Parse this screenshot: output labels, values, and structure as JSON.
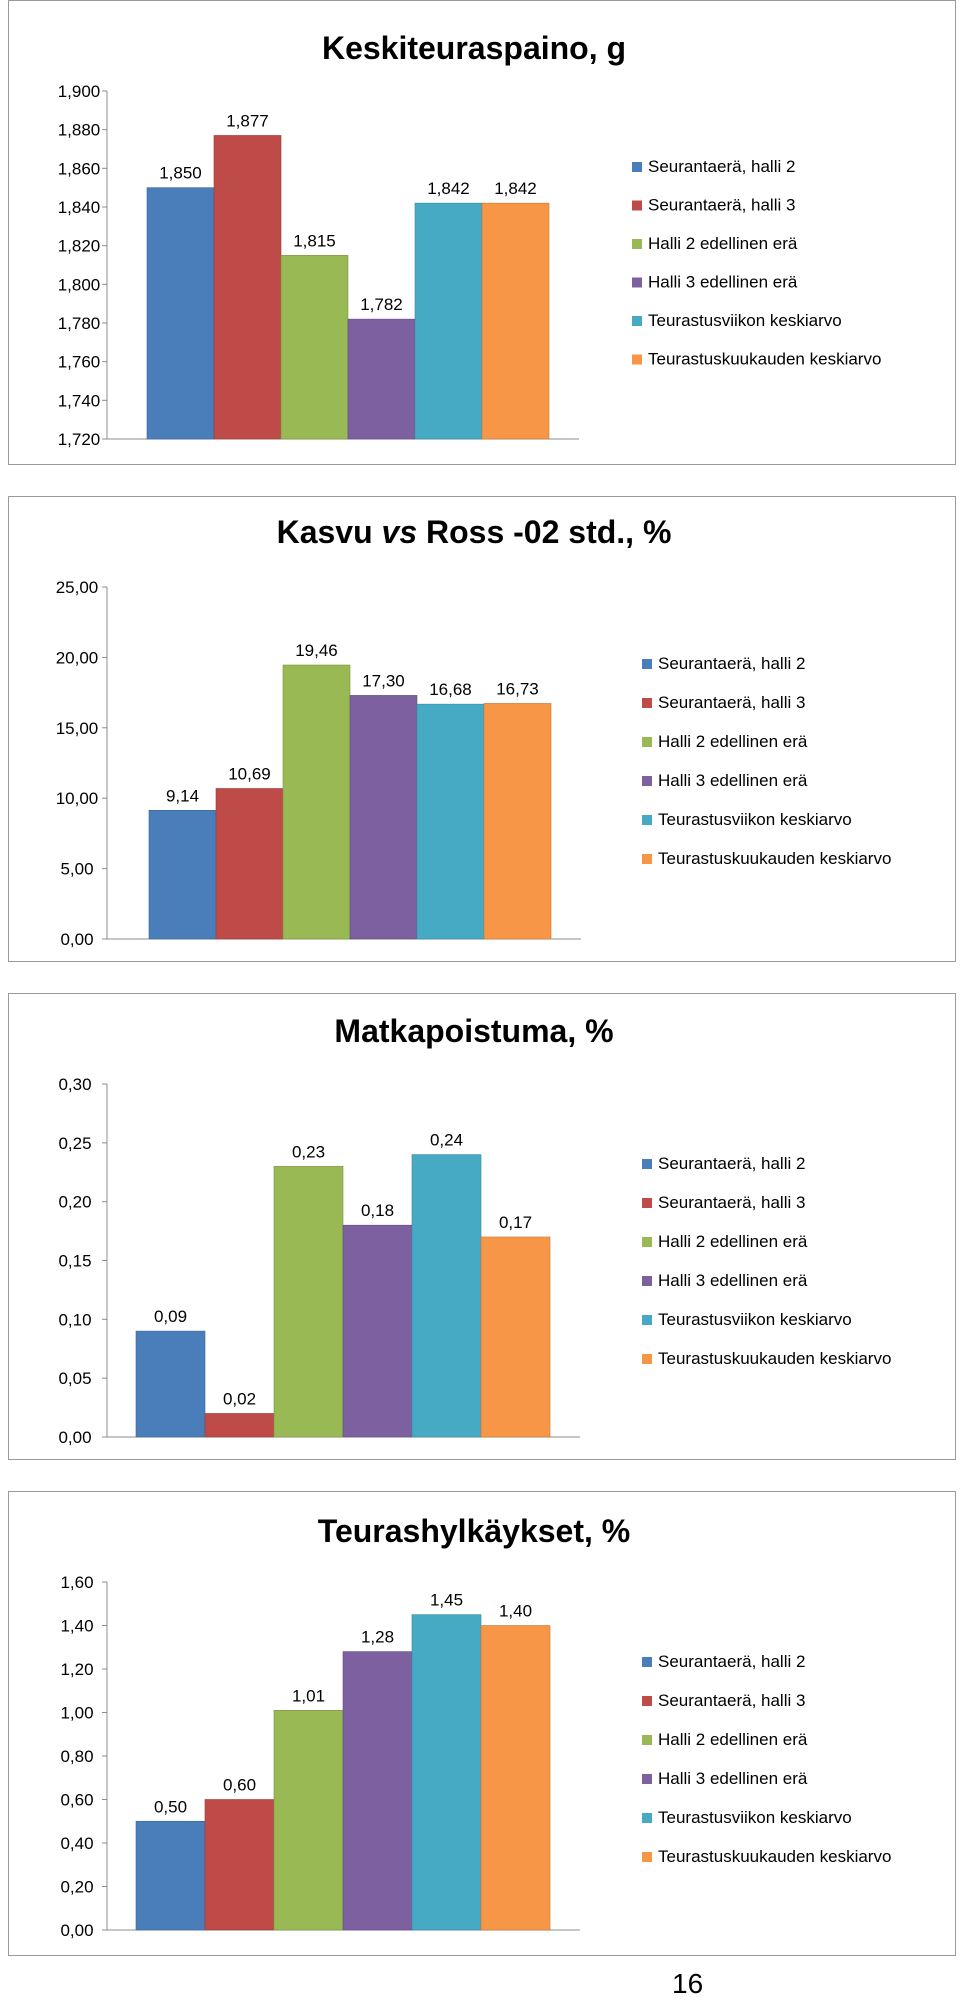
{
  "legend": [
    {
      "name": "Seurantaerä, halli 2",
      "color": "#4A7EBB"
    },
    {
      "name": "Seurantaerä, halli 3",
      "color": "#BE4B48"
    },
    {
      "name": "Halli 2 edellinen erä",
      "color": "#98B954"
    },
    {
      "name": "Halli 3 edellinen erä",
      "color": "#7D60A0"
    },
    {
      "name": "Teurastusviikon keskiarvo",
      "color": "#46AAC5"
    },
    {
      "name": "Teurastuskuukauden keskiarvo",
      "color": "#F79646"
    }
  ],
  "chart_data": [
    {
      "type": "bar",
      "title": "Keskiteuraspaino, g",
      "categories": [
        "Seurantaerä, halli 2",
        "Seurantaerä, halli 3",
        "Halli 2 edellinen erä",
        "Halli 3 edellinen erä",
        "Teurastusviikon keskiarvo",
        "Teurastuskuukauden keskiarvo"
      ],
      "values": [
        1850,
        1877,
        1815,
        1782,
        1842,
        1842
      ],
      "data_labels": [
        "1,850",
        "1,877",
        "1,815",
        "1,782",
        "1,842",
        "1,842"
      ],
      "ylim": [
        1720,
        1900
      ],
      "yticks": [
        "1,720",
        "1,740",
        "1,760",
        "1,780",
        "1,800",
        "1,820",
        "1,840",
        "1,860",
        "1,880",
        "1,900"
      ],
      "grid": false,
      "legend_position": "right"
    },
    {
      "type": "bar",
      "title": "Kasvu vs Ross -02 std., %",
      "title_parts": [
        "Kasvu ",
        "vs",
        " Ross -02 std., %"
      ],
      "categories": [
        "Seurantaerä, halli 2",
        "Seurantaerä, halli 3",
        "Halli 2 edellinen erä",
        "Halli 3 edellinen erä",
        "Teurastusviikon keskiarvo",
        "Teurastuskuukauden keskiarvo"
      ],
      "values": [
        9.14,
        10.69,
        19.46,
        17.3,
        16.68,
        16.73
      ],
      "data_labels": [
        "9,14",
        "10,69",
        "19,46",
        "17,30",
        "16,68",
        "16,73"
      ],
      "ylim": [
        0,
        25
      ],
      "yticks": [
        "0,00",
        "5,00",
        "10,00",
        "15,00",
        "20,00",
        "25,00"
      ],
      "grid": false,
      "legend_position": "right"
    },
    {
      "type": "bar",
      "title": "Matkapoistuma, %",
      "categories": [
        "Seurantaerä, halli 2",
        "Seurantaerä, halli 3",
        "Halli 2 edellinen erä",
        "Halli 3 edellinen erä",
        "Teurastusviikon keskiarvo",
        "Teurastuskuukauden keskiarvo"
      ],
      "values": [
        0.09,
        0.02,
        0.23,
        0.18,
        0.24,
        0.17
      ],
      "data_labels": [
        "0,09",
        "0,02",
        "0,23",
        "0,18",
        "0,24",
        "0,17"
      ],
      "ylim": [
        0,
        0.3
      ],
      "yticks": [
        "0,00",
        "0,05",
        "0,10",
        "0,15",
        "0,20",
        "0,25",
        "0,30"
      ],
      "grid": false,
      "legend_position": "right"
    },
    {
      "type": "bar",
      "title": "Teurashylkäykset, %",
      "categories": [
        "Seurantaerä, halli 2",
        "Seurantaerä, halli 3",
        "Halli 2 edellinen erä",
        "Halli 3 edellinen erä",
        "Teurastusviikon keskiarvo",
        "Teurastuskuukauden keskiarvo"
      ],
      "values": [
        0.5,
        0.6,
        1.01,
        1.28,
        1.45,
        1.4
      ],
      "data_labels": [
        "0,50",
        "0,60",
        "1,01",
        "1,28",
        "1,45",
        "1,40"
      ],
      "ylim": [
        0,
        1.6
      ],
      "yticks": [
        "0,00",
        "0,20",
        "0,40",
        "0,60",
        "0,80",
        "1,00",
        "1,20",
        "1,40",
        "1,60"
      ],
      "grid": false,
      "legend_position": "right"
    }
  ],
  "page_number": "16"
}
